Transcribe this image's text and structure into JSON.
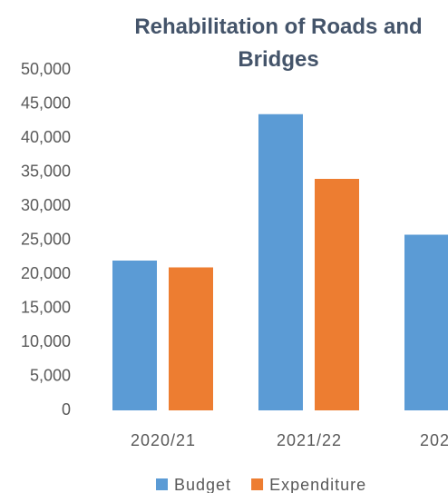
{
  "chart_data": {
    "type": "bar",
    "title": "Rehabilitation of Roads and Bridges",
    "categories": [
      "2020/21",
      "2021/22",
      "202"
    ],
    "series": [
      {
        "name": "Budget",
        "color": "#5b9bd5",
        "values": [
          22000,
          43500,
          25800
        ]
      },
      {
        "name": "Expenditure",
        "color": "#ed7d31",
        "values": [
          21000,
          34000,
          null
        ]
      }
    ],
    "ylim": [
      0,
      50000
    ],
    "yticks": [
      0,
      {
        "value": 5000,
        "label": "5,000"
      },
      {
        "value": 10000,
        "label": "10,000"
      },
      {
        "value": 15000,
        "label": "15,000"
      },
      {
        "value": 20000,
        "label": "20,000"
      },
      {
        "value": 25000,
        "label": "25,000"
      },
      {
        "value": 30000,
        "label": "30,000"
      },
      {
        "value": 35000,
        "label": "35,000"
      },
      {
        "value": 40000,
        "label": "40,000"
      },
      {
        "value": 45000,
        "label": "45,000"
      },
      {
        "value": 50000,
        "label": "50,000"
      }
    ],
    "grid": false,
    "legend": "bottom"
  }
}
